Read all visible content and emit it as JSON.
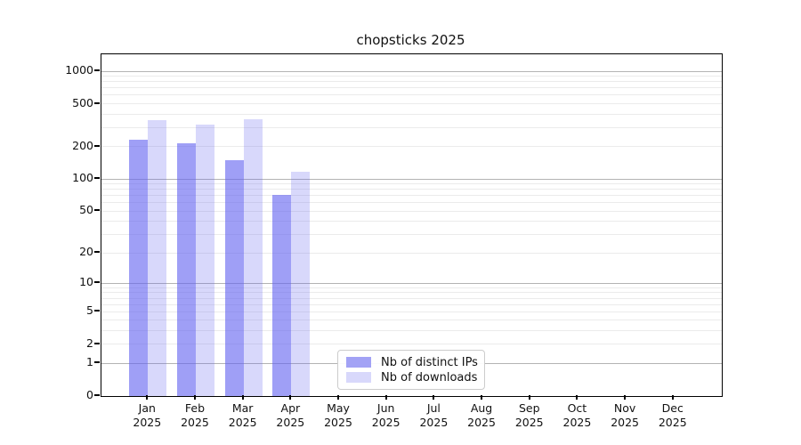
{
  "title": "chopsticks 2025",
  "chart_data": {
    "type": "bar",
    "title": "chopsticks 2025",
    "categories": [
      "Jan 2025",
      "Feb 2025",
      "Mar 2025",
      "Apr 2025",
      "May 2025",
      "Jun 2025",
      "Jul 2025",
      "Aug 2025",
      "Sep 2025",
      "Oct 2025",
      "Nov 2025",
      "Dec 2025"
    ],
    "series": [
      {
        "name": "Nb of distinct IPs",
        "color": "rgba(100,100,240,0.62)",
        "swatch_color": "#a2a2f5",
        "values": [
          230,
          216,
          151,
          71,
          null,
          null,
          null,
          null,
          null,
          null,
          null,
          null
        ]
      },
      {
        "name": "Nb of downloads",
        "color": "rgba(100,100,240,0.25)",
        "swatch_color": "#d8d8fb",
        "values": [
          352,
          320,
          362,
          116,
          null,
          null,
          null,
          null,
          null,
          null,
          null,
          null
        ]
      }
    ],
    "yscale": "log1p",
    "yticks": [
      0,
      1,
      2,
      5,
      10,
      20,
      50,
      100,
      200,
      500,
      1000
    ],
    "ylim": [
      0,
      1440
    ],
    "xlabel": "",
    "ylabel": "",
    "grid": {
      "major_at": [
        1,
        10,
        100,
        1000
      ],
      "major_color": "#b3b3b3",
      "minor_color": "#ebebeb",
      "minor_on": true
    },
    "legend_position": "lower center",
    "colors": {
      "spine": "#000000",
      "tick_text": "#111111",
      "background": "#ffffff"
    }
  }
}
